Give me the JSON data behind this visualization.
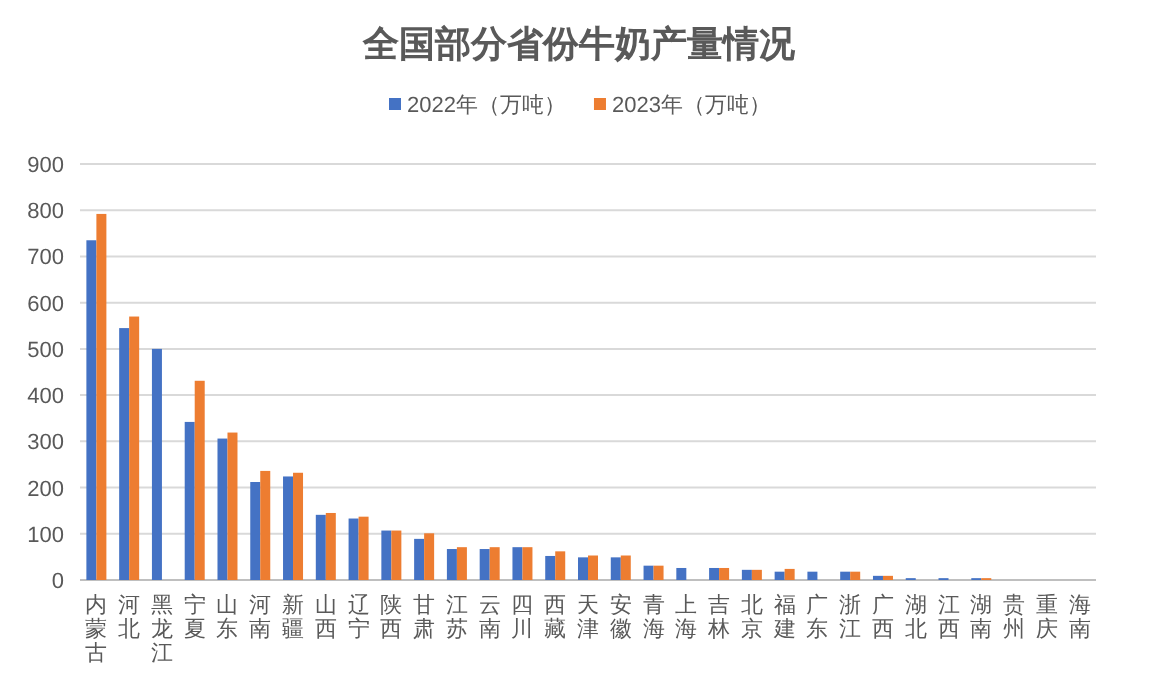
{
  "chart_data": {
    "type": "bar",
    "title": "全国部分省份牛奶产量情况",
    "categories": [
      "内蒙古",
      "河北",
      "黑龙江",
      "宁夏",
      "山东",
      "河南",
      "新疆",
      "山西",
      "辽宁",
      "陕西",
      "甘肃",
      "江苏",
      "云南",
      "四川",
      "西藏",
      "天津",
      "安徽",
      "青海",
      "上海",
      "吉林",
      "北京",
      "福建",
      "广东",
      "浙江",
      "广西",
      "湖北",
      "江西",
      "湖南",
      "贵州",
      "重庆",
      "海南"
    ],
    "series": [
      {
        "name": "2022年（万吨）",
        "color": "#4472c4",
        "values": [
          735,
          545,
          500,
          342,
          306,
          212,
          224,
          141,
          133,
          107,
          89,
          67,
          67,
          71,
          52,
          49,
          49,
          31,
          26,
          26,
          22,
          18,
          18,
          18,
          9,
          4,
          4,
          4,
          null,
          null,
          null
        ]
      },
      {
        "name": "2023年（万吨）",
        "color": "#ed7d31",
        "values": [
          792,
          570,
          null,
          431,
          319,
          236,
          232,
          145,
          137,
          107,
          101,
          71,
          71,
          71,
          62,
          53,
          53,
          31,
          null,
          26,
          22,
          24,
          null,
          18,
          9,
          null,
          null,
          4,
          null,
          null,
          null
        ]
      }
    ],
    "ylim": [
      0,
      900
    ],
    "yticks": [
      0,
      100,
      200,
      300,
      400,
      500,
      600,
      700,
      800,
      900
    ],
    "grid": "y",
    "legend": "top"
  }
}
